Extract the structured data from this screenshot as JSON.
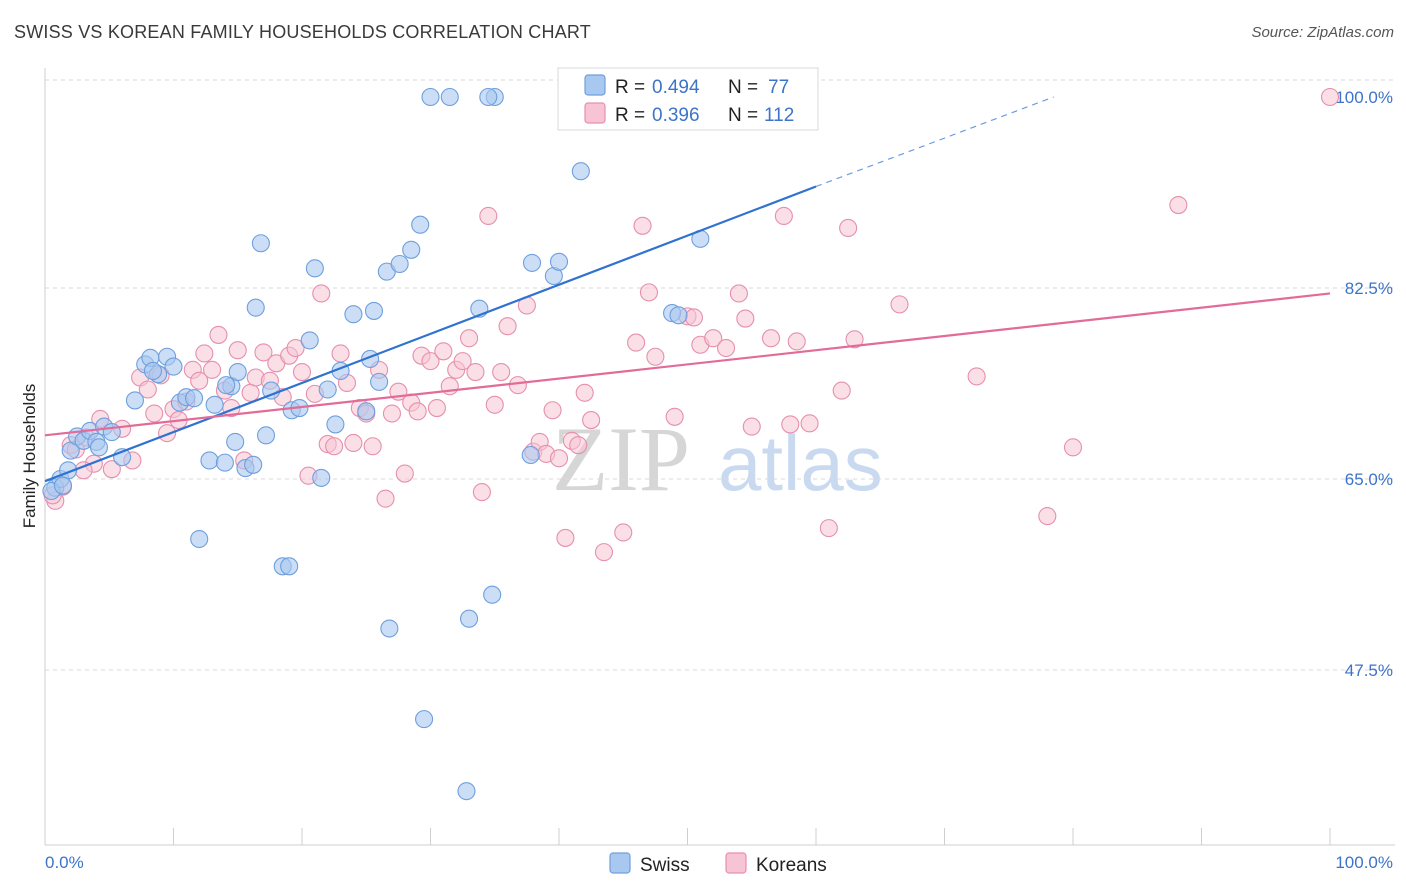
{
  "title": "SWISS VS KOREAN FAMILY HOUSEHOLDS CORRELATION CHART",
  "source": "Source: ZipAtlas.com",
  "watermark": {
    "zip": "ZIP",
    "atlas": "atlas"
  },
  "legend": {
    "row1": {
      "r_label": "R =",
      "r_value": "0.494",
      "n_label": "N =",
      "n_value": "77"
    },
    "row2": {
      "r_label": "R =",
      "r_value": "0.396",
      "n_label": "N =",
      "n_value": "112"
    }
  },
  "bottom_legend": {
    "swiss": "Swiss",
    "koreans": "Koreans"
  },
  "colors": {
    "swiss_fill": "#a9c8f0",
    "swiss_stroke": "#6e9fde",
    "swiss_line": "#2f72d0",
    "korean_fill": "#f6c4d4",
    "korean_stroke": "#e68fae",
    "korean_line": "#e26b98",
    "grid": "#d9d9d9",
    "tick_label": "#3d74c9"
  },
  "chart_data": {
    "type": "scatter",
    "title": "SWISS VS KOREAN FAMILY HOUSEHOLDS CORRELATION CHART",
    "xlabel": "",
    "ylabel": "Family Households",
    "xlim": [
      0,
      100
    ],
    "ylim": [
      33,
      103
    ],
    "x_tick_labels": [
      "0.0%",
      "100.0%"
    ],
    "y_ticks": [
      47.5,
      65.0,
      82.5,
      100.0
    ],
    "y_tick_labels": [
      "47.5%",
      "65.0%",
      "82.5%",
      "100.0%"
    ],
    "grid": true,
    "legend_position": "top-center",
    "series": [
      {
        "name": "Swiss",
        "R": 0.494,
        "N": 77,
        "trend": {
          "x0": 0,
          "y0": 64.8,
          "x1": 60,
          "y1": 91.8,
          "dashed_to_x": 78.5,
          "dashed_to_y": 100.0
        },
        "points": [
          [
            0.8,
            64.2
          ],
          [
            1.2,
            65.0
          ],
          [
            1.8,
            65.8
          ],
          [
            2.0,
            67.6
          ],
          [
            2.5,
            68.9
          ],
          [
            3.0,
            68.5
          ],
          [
            3.5,
            69.4
          ],
          [
            4.0,
            68.4
          ],
          [
            4.6,
            69.8
          ],
          [
            5.2,
            69.3
          ],
          [
            6.0,
            67.0
          ],
          [
            7.0,
            72.2
          ],
          [
            7.8,
            75.5
          ],
          [
            8.2,
            76.1
          ],
          [
            8.8,
            74.6
          ],
          [
            9.5,
            76.2
          ],
          [
            10.0,
            75.3
          ],
          [
            10.5,
            72.0
          ],
          [
            11.0,
            72.5
          ],
          [
            11.6,
            72.4
          ],
          [
            12.0,
            59.5
          ],
          [
            12.8,
            66.7
          ],
          [
            13.2,
            71.8
          ],
          [
            14.0,
            66.5
          ],
          [
            14.5,
            73.5
          ],
          [
            14.8,
            68.4
          ],
          [
            15.0,
            74.8
          ],
          [
            15.6,
            66.0
          ],
          [
            16.2,
            66.3
          ],
          [
            16.4,
            80.7
          ],
          [
            16.8,
            86.6
          ],
          [
            17.2,
            69.0
          ],
          [
            17.6,
            73.1
          ],
          [
            18.5,
            57.0
          ],
          [
            19.0,
            57.0
          ],
          [
            19.2,
            71.3
          ],
          [
            19.8,
            71.5
          ],
          [
            20.6,
            77.7
          ],
          [
            21.0,
            84.3
          ],
          [
            21.5,
            65.1
          ],
          [
            22.0,
            73.2
          ],
          [
            22.6,
            70.0
          ],
          [
            23.0,
            74.9
          ],
          [
            24.0,
            80.1
          ],
          [
            25.0,
            71.2
          ],
          [
            25.3,
            76.0
          ],
          [
            25.6,
            80.4
          ],
          [
            26.0,
            73.9
          ],
          [
            26.6,
            84.0
          ],
          [
            26.8,
            51.3
          ],
          [
            27.6,
            84.7
          ],
          [
            28.5,
            86.0
          ],
          [
            29.2,
            88.3
          ],
          [
            29.5,
            43.0
          ],
          [
            31.5,
            100.0
          ],
          [
            32.8,
            36.4
          ],
          [
            33.0,
            52.2
          ],
          [
            33.8,
            80.6
          ],
          [
            34.8,
            54.4
          ],
          [
            35.0,
            100.0
          ],
          [
            37.8,
            67.2
          ],
          [
            37.9,
            84.8
          ],
          [
            39.6,
            83.6
          ],
          [
            40.0,
            84.9
          ],
          [
            41.7,
            93.2
          ],
          [
            45.0,
            100.0
          ],
          [
            45.5,
            100.0
          ],
          [
            48.8,
            80.2
          ],
          [
            49.3,
            80.0
          ],
          [
            51.0,
            87.0
          ],
          [
            0.5,
            63.9
          ],
          [
            8.4,
            74.9
          ],
          [
            14.1,
            73.6
          ],
          [
            1.4,
            64.4
          ],
          [
            4.2,
            67.9
          ],
          [
            30.0,
            100.0
          ],
          [
            34.5,
            100.0
          ]
        ]
      },
      {
        "name": "Koreans",
        "R": 0.396,
        "N": 112,
        "trend": {
          "x0": 0,
          "y0": 69.0,
          "x1": 100,
          "y1": 82.0
        },
        "points": [
          [
            0.8,
            63.0
          ],
          [
            1.4,
            64.3
          ],
          [
            2.0,
            68.1
          ],
          [
            2.4,
            67.7
          ],
          [
            3.2,
            68.8
          ],
          [
            3.8,
            66.4
          ],
          [
            4.3,
            70.5
          ],
          [
            5.2,
            65.9
          ],
          [
            6.0,
            69.6
          ],
          [
            6.8,
            66.7
          ],
          [
            7.4,
            74.3
          ],
          [
            8.0,
            73.2
          ],
          [
            8.5,
            71.0
          ],
          [
            9.0,
            74.5
          ],
          [
            9.5,
            69.2
          ],
          [
            10.0,
            71.4
          ],
          [
            10.4,
            70.4
          ],
          [
            11.0,
            72.1
          ],
          [
            11.5,
            75.0
          ],
          [
            12.0,
            74.0
          ],
          [
            12.4,
            76.5
          ],
          [
            13.0,
            75.0
          ],
          [
            13.5,
            78.2
          ],
          [
            14.0,
            73.1
          ],
          [
            14.5,
            71.5
          ],
          [
            15.0,
            76.8
          ],
          [
            15.5,
            66.7
          ],
          [
            16.0,
            72.9
          ],
          [
            16.4,
            74.3
          ],
          [
            17.0,
            76.6
          ],
          [
            17.5,
            74.0
          ],
          [
            18.0,
            75.6
          ],
          [
            18.5,
            72.5
          ],
          [
            19.0,
            76.3
          ],
          [
            19.5,
            77.0
          ],
          [
            20.0,
            74.8
          ],
          [
            20.5,
            65.3
          ],
          [
            21.0,
            72.8
          ],
          [
            21.5,
            82.0
          ],
          [
            22.0,
            68.2
          ],
          [
            22.5,
            68.0
          ],
          [
            23.0,
            76.5
          ],
          [
            23.5,
            73.8
          ],
          [
            24.0,
            68.3
          ],
          [
            24.5,
            71.5
          ],
          [
            25.0,
            71.0
          ],
          [
            25.5,
            68.0
          ],
          [
            26.0,
            75.0
          ],
          [
            26.5,
            63.2
          ],
          [
            27.0,
            71.0
          ],
          [
            27.5,
            73.0
          ],
          [
            28.0,
            65.5
          ],
          [
            28.5,
            72.0
          ],
          [
            29.0,
            71.2
          ],
          [
            29.3,
            76.3
          ],
          [
            30.0,
            75.8
          ],
          [
            30.5,
            71.5
          ],
          [
            31.0,
            76.7
          ],
          [
            31.5,
            73.5
          ],
          [
            32.0,
            75.0
          ],
          [
            32.5,
            75.8
          ],
          [
            33.0,
            77.9
          ],
          [
            33.5,
            74.8
          ],
          [
            34.0,
            63.8
          ],
          [
            34.5,
            89.1
          ],
          [
            35.0,
            71.8
          ],
          [
            35.5,
            74.8
          ],
          [
            36.0,
            79.0
          ],
          [
            36.8,
            73.6
          ],
          [
            37.5,
            80.9
          ],
          [
            38.0,
            67.5
          ],
          [
            38.5,
            68.4
          ],
          [
            39.0,
            67.3
          ],
          [
            39.5,
            71.3
          ],
          [
            40.0,
            66.9
          ],
          [
            40.5,
            59.6
          ],
          [
            41.0,
            68.5
          ],
          [
            41.5,
            68.1
          ],
          [
            42.0,
            72.9
          ],
          [
            42.5,
            70.4
          ],
          [
            43.5,
            58.3
          ],
          [
            45.0,
            60.1
          ],
          [
            46.0,
            77.5
          ],
          [
            46.5,
            88.2
          ],
          [
            47.0,
            82.1
          ],
          [
            47.5,
            76.2
          ],
          [
            49.0,
            70.7
          ],
          [
            50.0,
            79.9
          ],
          [
            50.5,
            79.8
          ],
          [
            51.0,
            77.3
          ],
          [
            52.0,
            77.9
          ],
          [
            53.0,
            77.0
          ],
          [
            54.0,
            82.0
          ],
          [
            54.5,
            79.7
          ],
          [
            55.0,
            69.8
          ],
          [
            56.5,
            77.9
          ],
          [
            57.5,
            89.1
          ],
          [
            58.0,
            70.0
          ],
          [
            58.5,
            77.6
          ],
          [
            59.5,
            70.1
          ],
          [
            61.0,
            60.5
          ],
          [
            62.0,
            73.1
          ],
          [
            62.5,
            88.0
          ],
          [
            63.0,
            77.8
          ],
          [
            66.5,
            81.0
          ],
          [
            72.5,
            74.4
          ],
          [
            78.0,
            61.6
          ],
          [
            80.0,
            67.9
          ],
          [
            88.2,
            90.1
          ],
          [
            100.0,
            100.0
          ],
          [
            0.6,
            63.5
          ],
          [
            3.0,
            65.8
          ]
        ]
      }
    ]
  }
}
